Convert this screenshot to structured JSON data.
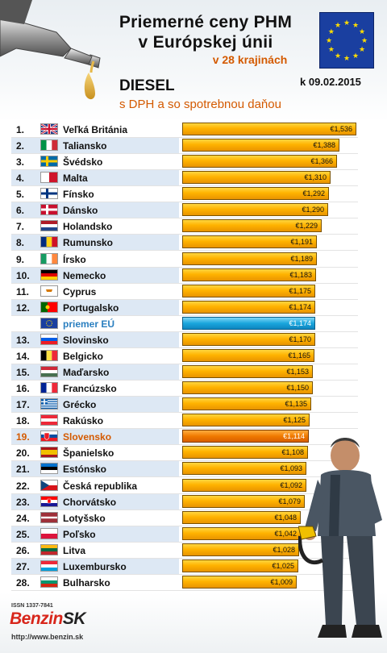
{
  "header": {
    "title_line1": "Priemerné ceny PHM",
    "title_line2": "v Európskej únii",
    "subtitle": "v 28 krajinách",
    "date": "k 09.02.2015",
    "fuel": "DIESEL",
    "note": "s DPH a so spotrebnou daňou"
  },
  "footer": {
    "issn": "ISSN 1337-7841",
    "logo_benzin": "Benzin",
    "logo_sk": "SK",
    "url": "http://www.benzin.sk"
  },
  "colors": {
    "bar": "#ffb300",
    "eu_bar": "#1aa6dd",
    "slovakia_bar": "#f07a00",
    "accent_text": "#d45a00",
    "eu_text": "#2a7fc0"
  },
  "chart_data": {
    "type": "bar",
    "orientation": "horizontal",
    "title": "Priemerné ceny PHM v Európskej únii",
    "currency": "€",
    "xlim": [
      0,
      1.6
    ],
    "rows": [
      {
        "rank": "1.",
        "country": "Veľká Británia",
        "value": 1.536,
        "label": "€1,536",
        "flag": "uk"
      },
      {
        "rank": "2.",
        "country": "Taliansko",
        "value": 1.388,
        "label": "€1,388",
        "flag": "it"
      },
      {
        "rank": "3.",
        "country": "Švédsko",
        "value": 1.366,
        "label": "€1,366",
        "flag": "se"
      },
      {
        "rank": "4.",
        "country": "Malta",
        "value": 1.31,
        "label": "€1,310",
        "flag": "mt"
      },
      {
        "rank": "5.",
        "country": "Fínsko",
        "value": 1.292,
        "label": "€1,292",
        "flag": "fi"
      },
      {
        "rank": "6.",
        "country": "Dánsko",
        "value": 1.29,
        "label": "€1,290",
        "flag": "dk"
      },
      {
        "rank": "7.",
        "country": "Holandsko",
        "value": 1.229,
        "label": "€1,229",
        "flag": "nl"
      },
      {
        "rank": "8.",
        "country": "Rumunsko",
        "value": 1.191,
        "label": "€1,191",
        "flag": "ro"
      },
      {
        "rank": "9.",
        "country": "Írsko",
        "value": 1.189,
        "label": "€1,189",
        "flag": "ie"
      },
      {
        "rank": "10.",
        "country": "Nemecko",
        "value": 1.183,
        "label": "€1,183",
        "flag": "de"
      },
      {
        "rank": "11.",
        "country": "Cyprus",
        "value": 1.175,
        "label": "€1,175",
        "flag": "cy"
      },
      {
        "rank": "12.",
        "country": "Portugalsko",
        "value": 1.174,
        "label": "€1,174",
        "flag": "pt"
      },
      {
        "rank": "",
        "country": "priemer EÚ",
        "value": 1.174,
        "label": "€1,174",
        "flag": "eu",
        "kind": "eu"
      },
      {
        "rank": "13.",
        "country": "Slovinsko",
        "value": 1.17,
        "label": "€1,170",
        "flag": "si"
      },
      {
        "rank": "14.",
        "country": "Belgicko",
        "value": 1.165,
        "label": "€1,165",
        "flag": "be"
      },
      {
        "rank": "15.",
        "country": "Maďarsko",
        "value": 1.153,
        "label": "€1,153",
        "flag": "hu"
      },
      {
        "rank": "16.",
        "country": "Francúzsko",
        "value": 1.15,
        "label": "€1,150",
        "flag": "fr"
      },
      {
        "rank": "17.",
        "country": "Grécko",
        "value": 1.135,
        "label": "€1,135",
        "flag": "gr"
      },
      {
        "rank": "18.",
        "country": "Rakúsko",
        "value": 1.125,
        "label": "€1,125",
        "flag": "at"
      },
      {
        "rank": "19.",
        "country": "Slovensko",
        "value": 1.114,
        "label": "€1,114",
        "flag": "sk",
        "kind": "sk"
      },
      {
        "rank": "20.",
        "country": "Španielsko",
        "value": 1.108,
        "label": "€1,108",
        "flag": "es"
      },
      {
        "rank": "21.",
        "country": "Estónsko",
        "value": 1.093,
        "label": "€1,093",
        "flag": "ee"
      },
      {
        "rank": "22.",
        "country": "Česká republika",
        "value": 1.092,
        "label": "€1,092",
        "flag": "cz"
      },
      {
        "rank": "23.",
        "country": "Chorvátsko",
        "value": 1.079,
        "label": "€1,079",
        "flag": "hr"
      },
      {
        "rank": "24.",
        "country": "Lotyšsko",
        "value": 1.048,
        "label": "€1,048",
        "flag": "lv"
      },
      {
        "rank": "25.",
        "country": "Poľsko",
        "value": 1.042,
        "label": "€1,042",
        "flag": "pl"
      },
      {
        "rank": "26.",
        "country": "Litva",
        "value": 1.028,
        "label": "€1,028",
        "flag": "lt"
      },
      {
        "rank": "27.",
        "country": "Luxembursko",
        "value": 1.025,
        "label": "€1,025",
        "flag": "lu"
      },
      {
        "rank": "28.",
        "country": "Bulharsko",
        "value": 1.009,
        "label": "€1,009",
        "flag": "bg"
      }
    ]
  }
}
